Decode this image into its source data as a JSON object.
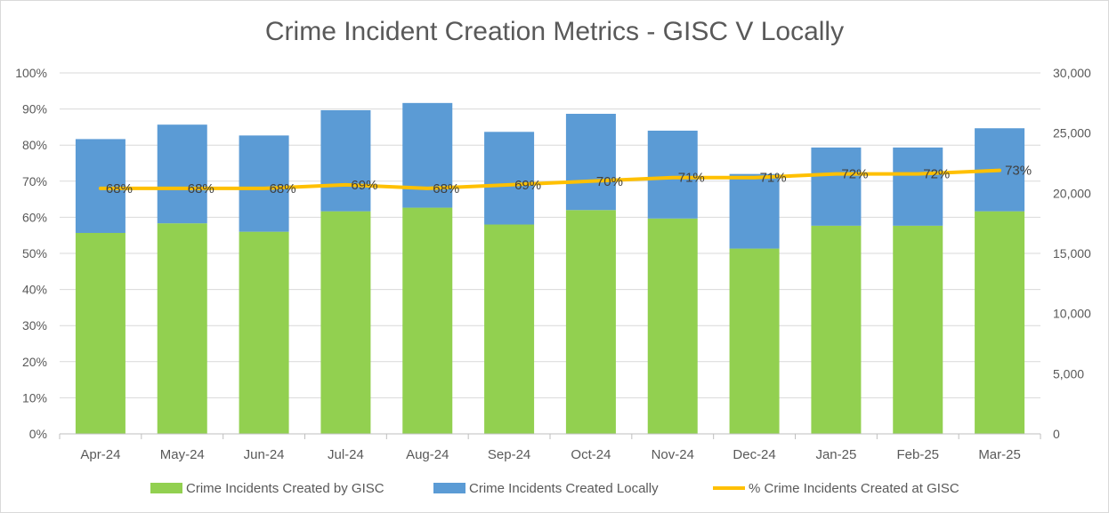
{
  "chart_data": {
    "type": "bar",
    "title": "Crime Incident Creation Metrics - GISC V Locally",
    "categories": [
      "Apr-24",
      "May-24",
      "Jun-24",
      "Jul-24",
      "Aug-24",
      "Sep-24",
      "Oct-24",
      "Nov-24",
      "Dec-24",
      "Jan-25",
      "Feb-25",
      "Mar-25"
    ],
    "stacked": true,
    "series": [
      {
        "name": "Crime Incidents Created by GISC",
        "type": "bar",
        "axis": "right",
        "color": "#92d050",
        "values": [
          16700,
          17500,
          16800,
          18500,
          18800,
          17400,
          18600,
          17900,
          15400,
          17300,
          17300,
          18500
        ]
      },
      {
        "name": "Crime Incidents Created Locally",
        "type": "bar",
        "axis": "right",
        "color": "#5b9bd5",
        "values": [
          7800,
          8200,
          8000,
          8400,
          8700,
          7700,
          8000,
          7300,
          6200,
          6500,
          6500,
          6900
        ]
      },
      {
        "name": "% Crime Incidents Created at GISC",
        "type": "line",
        "axis": "left",
        "color": "#ffc000",
        "values": [
          68,
          68,
          68,
          69,
          68,
          69,
          70,
          71,
          71,
          72,
          72,
          73
        ],
        "labels": [
          "68%",
          "68%",
          "68%",
          "69%",
          "68%",
          "69%",
          "70%",
          "71%",
          "71%",
          "72%",
          "72%",
          "73%"
        ]
      }
    ],
    "y_left": {
      "ylim": [
        0,
        100
      ],
      "ticks": [
        "0%",
        "10%",
        "20%",
        "30%",
        "40%",
        "50%",
        "60%",
        "70%",
        "80%",
        "90%",
        "100%"
      ]
    },
    "y_right": {
      "ylim": [
        0,
        30000
      ],
      "ticks": [
        "0",
        "5,000",
        "10,000",
        "15,000",
        "20,000",
        "25,000",
        "30,000"
      ]
    },
    "grid": true,
    "legend_position": "bottom"
  }
}
